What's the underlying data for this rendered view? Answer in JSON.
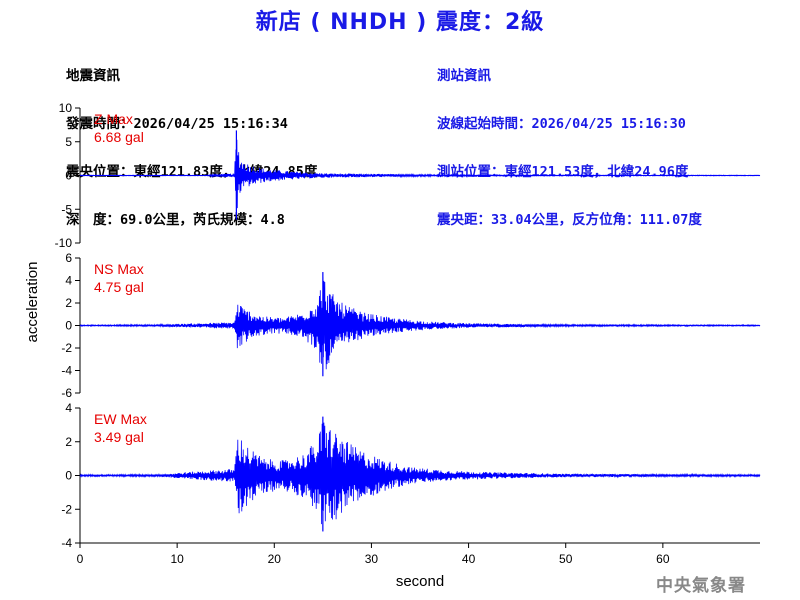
{
  "title": "新店 ( NHDH ) 震度：2級",
  "quake_info": {
    "heading": "地震資訊",
    "origin_time": "發震時間：2026/04/25 15:16:34",
    "epicenter": "震央位置：東經121.83度，北緯24.85度",
    "depth_magnitude": "深　度：69.0公里，芮氏規模：4.8"
  },
  "station_info": {
    "heading": "測站資訊",
    "wave_start": "波線起始時間：2026/04/25 15:16:30",
    "station_location": "測站位置：東經121.53度，北緯24.96度",
    "distance_azimuth": "震央距：33.04公里，反方位角：111.07度"
  },
  "watermark": "中央氣象署",
  "colors": {
    "trace": "#0000ff",
    "title": "#1a1ae6",
    "max_label": "#e60000",
    "axis": "#000000"
  },
  "chart_data": [
    {
      "type": "line",
      "component": "Z",
      "max_label": "Z Max",
      "max_value": "6.68 gal",
      "ylim": [
        -10,
        10
      ],
      "yticks": [
        10,
        5,
        0,
        -5,
        -10
      ],
      "envelope": [
        [
          0,
          0.05
        ],
        [
          13,
          0.05
        ],
        [
          14,
          0.2
        ],
        [
          15.9,
          0.3
        ],
        [
          16.1,
          6.68
        ],
        [
          16.5,
          2.6
        ],
        [
          17.5,
          1.6
        ],
        [
          19,
          1.0
        ],
        [
          21,
          0.7
        ],
        [
          24,
          0.4
        ],
        [
          26,
          0.3
        ],
        [
          30,
          0.25
        ],
        [
          35,
          0.15
        ],
        [
          40,
          0.1
        ],
        [
          45,
          0.08
        ],
        [
          70,
          0.05
        ]
      ]
    },
    {
      "type": "line",
      "component": "NS",
      "max_label": "NS Max",
      "max_value": "4.75 gal",
      "ylim": [
        -6,
        6
      ],
      "yticks": [
        6,
        4,
        2,
        0,
        -2,
        -4,
        -6
      ],
      "envelope": [
        [
          0,
          0.05
        ],
        [
          8,
          0.08
        ],
        [
          12,
          0.2
        ],
        [
          15.9,
          0.3
        ],
        [
          16.2,
          2.2
        ],
        [
          17,
          1.5
        ],
        [
          19,
          0.8
        ],
        [
          21,
          0.7
        ],
        [
          23,
          1.2
        ],
        [
          24.5,
          2.5
        ],
        [
          25,
          4.75
        ],
        [
          25.8,
          3.0
        ],
        [
          27,
          2.0
        ],
        [
          29,
          1.2
        ],
        [
          32,
          0.7
        ],
        [
          36,
          0.35
        ],
        [
          40,
          0.2
        ],
        [
          50,
          0.08
        ],
        [
          70,
          0.05
        ]
      ]
    },
    {
      "type": "line",
      "component": "EW",
      "max_label": "EW Max",
      "max_value": "3.49 gal",
      "ylim": [
        -4,
        4
      ],
      "yticks": [
        4,
        2,
        0,
        -2,
        -4
      ],
      "envelope": [
        [
          0,
          0.05
        ],
        [
          8,
          0.06
        ],
        [
          12,
          0.25
        ],
        [
          15.9,
          0.4
        ],
        [
          16.2,
          2.5
        ],
        [
          17.5,
          1.6
        ],
        [
          19,
          1.0
        ],
        [
          21,
          0.9
        ],
        [
          23,
          1.3
        ],
        [
          24.5,
          2.2
        ],
        [
          25,
          3.49
        ],
        [
          26,
          2.8
        ],
        [
          27.5,
          2.0
        ],
        [
          29,
          1.5
        ],
        [
          31,
          1.0
        ],
        [
          34,
          0.5
        ],
        [
          38,
          0.3
        ],
        [
          42,
          0.2
        ],
        [
          50,
          0.1
        ],
        [
          70,
          0.05
        ]
      ]
    }
  ],
  "x_axis": {
    "label": "second",
    "xlim": [
      0,
      70
    ],
    "ticks": [
      0,
      10,
      20,
      30,
      40,
      50,
      60
    ]
  },
  "y_axis": {
    "label": "acceleration"
  }
}
